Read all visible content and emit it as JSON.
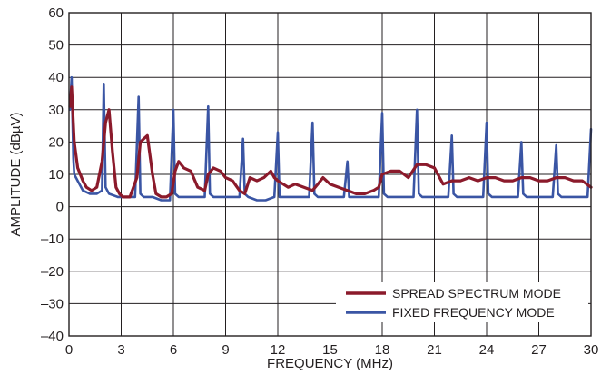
{
  "chart_data": {
    "type": "line",
    "title": "",
    "xlabel": "FREQUENCY (MHz)",
    "ylabel": "AMPLITUDE (dBµV)",
    "xlim": [
      0,
      30
    ],
    "ylim": [
      -40,
      60
    ],
    "x_ticks": [
      0,
      3,
      6,
      9,
      12,
      15,
      18,
      21,
      24,
      27,
      30
    ],
    "x_tick_labels": [
      "0",
      "3",
      "6",
      "9",
      "12",
      "15",
      "18",
      "21",
      "24",
      "27",
      "30"
    ],
    "y_ticks": [
      -40,
      -30,
      -20,
      -10,
      0,
      10,
      20,
      30,
      40,
      50,
      60
    ],
    "y_tick_labels": [
      "–40",
      "–30",
      "–20",
      "–10",
      "0",
      "10",
      "20",
      "30",
      "40",
      "50",
      "60"
    ],
    "grid": true,
    "legend_position": "bottom-right",
    "series": [
      {
        "name": "SPREAD SPECTRUM MODE",
        "color": "#8b1a2b",
        "x": [
          0.05,
          0.15,
          0.3,
          0.5,
          0.8,
          1.0,
          1.3,
          1.6,
          1.9,
          2.1,
          2.3,
          2.5,
          2.7,
          2.9,
          3.1,
          3.5,
          3.9,
          4.1,
          4.3,
          4.5,
          4.8,
          5.0,
          5.3,
          5.6,
          5.9,
          6.1,
          6.3,
          6.6,
          7.0,
          7.4,
          7.8,
          8.0,
          8.3,
          8.7,
          9.0,
          9.4,
          9.8,
          10.1,
          10.4,
          10.8,
          11.2,
          11.6,
          11.8,
          12.0,
          12.3,
          12.6,
          13.0,
          13.5,
          14.0,
          14.3,
          14.6,
          15.0,
          15.5,
          16.0,
          16.5,
          17.0,
          17.5,
          17.8,
          18.0,
          18.5,
          19.0,
          19.5,
          20.0,
          20.5,
          21.0,
          21.5,
          22.0,
          22.5,
          23.0,
          23.5,
          24.0,
          24.5,
          25.0,
          25.5,
          26.0,
          26.5,
          27.0,
          27.5,
          28.0,
          28.5,
          29.0,
          29.5,
          30.0
        ],
        "values": [
          31,
          37,
          20,
          12,
          8,
          6,
          5,
          6,
          14,
          26,
          30,
          17,
          6,
          4,
          3,
          3,
          9,
          20,
          21,
          22,
          10,
          4,
          3,
          3,
          4,
          11,
          14,
          12,
          11,
          6,
          5,
          10,
          12,
          11,
          9,
          8,
          5,
          4,
          9,
          8,
          9,
          11,
          9,
          8,
          7,
          6,
          7,
          6,
          5,
          7,
          9,
          7,
          6,
          5,
          4,
          4,
          5,
          6,
          10,
          11,
          11,
          9,
          13,
          13,
          12,
          7,
          8,
          8,
          9,
          8,
          9,
          9,
          8,
          8,
          9,
          9,
          8,
          8,
          9,
          9,
          8,
          8,
          6
        ]
      },
      {
        "name": "FIXED FREQUENCY MODE",
        "color": "#3a55a4",
        "x": [
          0.05,
          0.15,
          0.2,
          0.25,
          0.3,
          0.5,
          0.8,
          1.2,
          1.6,
          1.9,
          2.0,
          2.1,
          2.3,
          2.8,
          3.3,
          3.8,
          4.0,
          4.1,
          4.3,
          4.8,
          5.3,
          5.8,
          6.0,
          6.1,
          6.3,
          6.8,
          7.3,
          7.8,
          8.0,
          8.1,
          8.3,
          8.8,
          9.3,
          9.8,
          10.0,
          10.1,
          10.3,
          10.8,
          11.3,
          11.8,
          12.0,
          12.1,
          12.3,
          13.0,
          13.8,
          14.0,
          14.1,
          14.3,
          15.0,
          15.8,
          16.0,
          16.1,
          16.3,
          17.0,
          17.8,
          18.0,
          18.1,
          18.3,
          19.0,
          19.8,
          20.0,
          20.1,
          20.3,
          21.0,
          21.8,
          22.0,
          22.1,
          22.3,
          23.0,
          23.8,
          24.0,
          24.1,
          24.3,
          25.0,
          25.8,
          26.0,
          26.1,
          26.3,
          27.0,
          27.8,
          28.0,
          28.1,
          28.3,
          29.0,
          29.8,
          30.0
        ],
        "values": [
          30,
          40,
          28,
          15,
          10,
          8,
          5,
          4,
          4,
          5,
          38,
          6,
          4,
          3,
          3,
          3,
          34,
          4,
          3,
          3,
          2,
          2,
          30,
          4,
          3,
          3,
          3,
          3,
          31,
          4,
          3,
          3,
          3,
          3,
          21,
          4,
          3,
          2,
          2,
          3,
          23,
          3,
          3,
          3,
          3,
          26,
          4,
          3,
          3,
          3,
          14,
          3,
          3,
          3,
          3,
          29,
          4,
          3,
          3,
          3,
          30,
          4,
          3,
          3,
          3,
          22,
          4,
          3,
          3,
          3,
          26,
          4,
          3,
          3,
          3,
          20,
          4,
          3,
          3,
          3,
          19,
          4,
          3,
          3,
          3,
          24
        ]
      }
    ]
  }
}
